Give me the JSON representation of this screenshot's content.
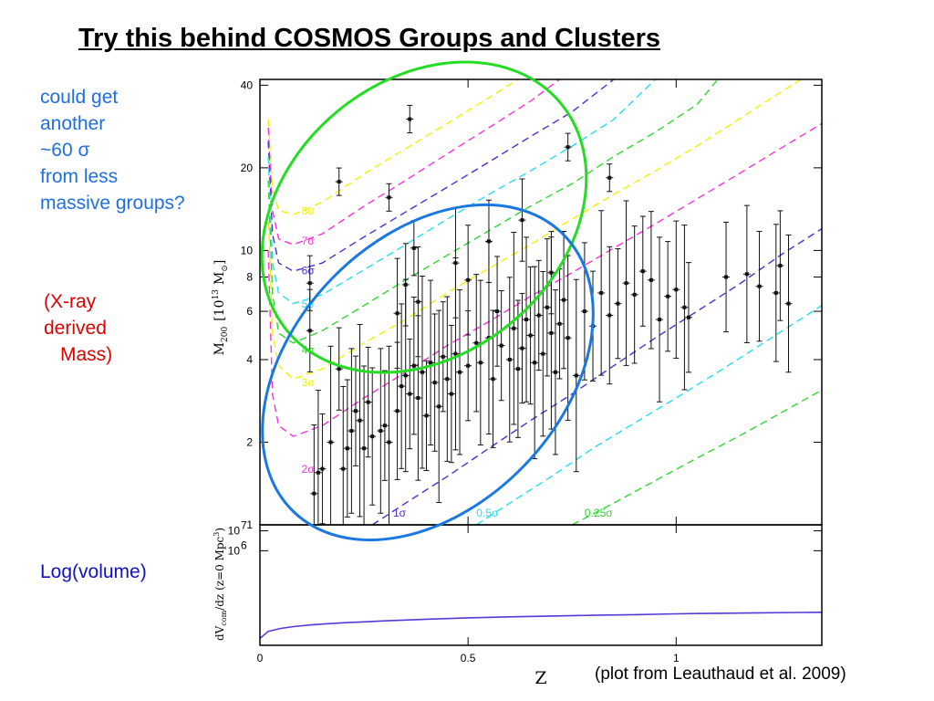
{
  "slide": {
    "title": "Try this behind COSMOS Groups and Clusters",
    "note_groups": [
      "could get",
      "another",
      "~60 σ",
      "from less",
      "massive groups?"
    ],
    "note_mass": [
      "(X-ray",
      "derived",
      "Mass)"
    ],
    "note_volume": "Log(volume)",
    "credit": "(plot from Leauthaud et al. 2009)"
  },
  "colors": {
    "yellow": "#f2f200",
    "magenta": "#ff30e0",
    "indigo": "#4a2fd8",
    "cyan": "#22e0f4",
    "green": "#30d830",
    "green_ellipse": "#22dd22",
    "blue_ellipse": "#1a78e0",
    "volume_curve": "#5a38d8"
  },
  "chart_data": [
    {
      "type": "scatter",
      "title": "",
      "xlabel": "",
      "ylabel": "M200 [10^13 M☉]",
      "ylabel_parts": {
        "main": "M",
        "sub": "200",
        "bracket_open": "[10",
        "exp": "13",
        "unit": "M",
        "unit_sub": "⊙",
        "bracket_close": "]"
      },
      "xlim": [
        0,
        1.35
      ],
      "ylim": [
        1,
        42
      ],
      "yscale": "log",
      "yticks": [
        1,
        2,
        4,
        6,
        8,
        10,
        20,
        40
      ],
      "ytick_labels": [
        "1",
        "2",
        "4",
        "6",
        "8",
        "10",
        "20",
        "40"
      ],
      "grid": false,
      "sigma_contours": [
        {
          "label": "8σ",
          "color": "yellow",
          "label_z": 0.1,
          "label_m": 13.5,
          "points": [
            [
              0.02,
              30
            ],
            [
              0.03,
              17
            ],
            [
              0.045,
              14
            ],
            [
              0.08,
              13.5
            ],
            [
              0.15,
              15
            ],
            [
              0.25,
              19
            ],
            [
              0.35,
              23.5
            ],
            [
              0.45,
              29
            ],
            [
              0.55,
              36
            ],
            [
              0.62,
              42
            ]
          ]
        },
        {
          "label": "7σ",
          "color": "magenta",
          "label_z": 0.1,
          "label_m": 10.5,
          "points": [
            [
              0.02,
              28
            ],
            [
              0.03,
              14
            ],
            [
              0.045,
              11
            ],
            [
              0.08,
              10.5
            ],
            [
              0.15,
              11.5
            ],
            [
              0.25,
              14.5
            ],
            [
              0.35,
              18
            ],
            [
              0.45,
              22.5
            ],
            [
              0.55,
              28
            ],
            [
              0.65,
              35
            ],
            [
              0.72,
              42
            ]
          ]
        },
        {
          "label": "6σ",
          "color": "indigo",
          "label_z": 0.1,
          "label_m": 8.2,
          "points": [
            [
              0.02,
              25
            ],
            [
              0.03,
              11.5
            ],
            [
              0.045,
              9
            ],
            [
              0.08,
              8.4
            ],
            [
              0.15,
              9
            ],
            [
              0.25,
              11.2
            ],
            [
              0.35,
              13.8
            ],
            [
              0.45,
              17
            ],
            [
              0.55,
              21
            ],
            [
              0.65,
              26
            ],
            [
              0.75,
              32
            ],
            [
              0.85,
              42
            ]
          ]
        },
        {
          "label": "5σ",
          "color": "cyan",
          "label_z": 0.1,
          "label_m": 6.2,
          "points": [
            [
              0.02,
              22
            ],
            [
              0.03,
              9
            ],
            [
              0.045,
              7
            ],
            [
              0.08,
              6.4
            ],
            [
              0.15,
              6.9
            ],
            [
              0.25,
              8.5
            ],
            [
              0.35,
              10.5
            ],
            [
              0.45,
              13
            ],
            [
              0.55,
              16
            ],
            [
              0.65,
              19.5
            ],
            [
              0.75,
              24
            ],
            [
              0.85,
              30
            ],
            [
              0.95,
              42
            ]
          ]
        },
        {
          "label": "4σ",
          "color": "green",
          "label_z": 0.1,
          "label_m": 4.2,
          "points": [
            [
              0.02,
              18
            ],
            [
              0.03,
              7
            ],
            [
              0.045,
              5
            ],
            [
              0.08,
              4.6
            ],
            [
              0.15,
              5.1
            ],
            [
              0.25,
              6.3
            ],
            [
              0.35,
              7.8
            ],
            [
              0.45,
              9.6
            ],
            [
              0.55,
              11.8
            ],
            [
              0.65,
              14.5
            ],
            [
              0.75,
              17.5
            ],
            [
              0.85,
              22
            ],
            [
              0.95,
              27
            ],
            [
              1.05,
              34
            ],
            [
              1.1,
              42
            ]
          ]
        },
        {
          "label": "3σ",
          "color": "yellow",
          "label_z": 0.1,
          "label_m": 3.2,
          "points": [
            [
              0.02,
              14
            ],
            [
              0.03,
              5
            ],
            [
              0.045,
              3.8
            ],
            [
              0.08,
              3.4
            ],
            [
              0.15,
              3.7
            ],
            [
              0.25,
              4.6
            ],
            [
              0.35,
              5.6
            ],
            [
              0.45,
              7
            ],
            [
              0.55,
              8.6
            ],
            [
              0.65,
              10.5
            ],
            [
              0.75,
              13
            ],
            [
              0.85,
              16
            ],
            [
              0.95,
              19.5
            ],
            [
              1.05,
              24
            ],
            [
              1.15,
              30
            ],
            [
              1.23,
              36
            ],
            [
              1.3,
              42
            ]
          ]
        },
        {
          "label": "2σ",
          "color": "magenta",
          "label_z": 0.1,
          "label_m": 1.55,
          "points": [
            [
              0.02,
              10
            ],
            [
              0.03,
              3
            ],
            [
              0.045,
              2.3
            ],
            [
              0.08,
              2.1
            ],
            [
              0.15,
              2.3
            ],
            [
              0.25,
              2.9
            ],
            [
              0.35,
              3.6
            ],
            [
              0.45,
              4.5
            ],
            [
              0.55,
              5.5
            ],
            [
              0.65,
              6.8
            ],
            [
              0.75,
              8.3
            ],
            [
              0.85,
              10.2
            ],
            [
              0.95,
              12.5
            ],
            [
              1.05,
              15.4
            ],
            [
              1.15,
              19
            ],
            [
              1.25,
              23.5
            ],
            [
              1.35,
              29
            ]
          ]
        },
        {
          "label": "1σ",
          "color": "indigo",
          "label_z": 0.32,
          "label_m": 1.07,
          "points": [
            [
              0.27,
              1
            ],
            [
              0.35,
              1.2
            ],
            [
              0.45,
              1.5
            ],
            [
              0.55,
              1.9
            ],
            [
              0.65,
              2.4
            ],
            [
              0.75,
              3
            ],
            [
              0.85,
              3.8
            ],
            [
              0.95,
              4.8
            ],
            [
              1.05,
              6
            ],
            [
              1.15,
              7.5
            ],
            [
              1.25,
              9.6
            ],
            [
              1.35,
              12
            ]
          ]
        },
        {
          "label": "0.5σ",
          "color": "cyan",
          "label_z": 0.52,
          "label_m": 1.07,
          "points": [
            [
              0.52,
              1
            ],
            [
              0.6,
              1.2
            ],
            [
              0.7,
              1.5
            ],
            [
              0.8,
              1.9
            ],
            [
              0.9,
              2.35
            ],
            [
              1.0,
              2.9
            ],
            [
              1.1,
              3.6
            ],
            [
              1.2,
              4.5
            ],
            [
              1.35,
              6.3
            ]
          ]
        },
        {
          "label": "0.25σ",
          "color": "green",
          "label_z": 0.78,
          "label_m": 1.07,
          "points": [
            [
              0.75,
              1
            ],
            [
              0.85,
              1.2
            ],
            [
              0.95,
              1.45
            ],
            [
              1.05,
              1.75
            ],
            [
              1.15,
              2.1
            ],
            [
              1.25,
              2.55
            ],
            [
              1.35,
              3.1
            ]
          ]
        }
      ],
      "points": [
        [
          0.13,
          1.3
        ],
        [
          0.14,
          1.55
        ],
        [
          0.15,
          1.6
        ],
        [
          0.17,
          2.0
        ],
        [
          0.2,
          1.6
        ],
        [
          0.21,
          1.9
        ],
        [
          0.22,
          2.2
        ],
        [
          0.23,
          2.6
        ],
        [
          0.24,
          2.4
        ],
        [
          0.25,
          1.9
        ],
        [
          0.27,
          2.1
        ],
        [
          0.29,
          2.2
        ],
        [
          0.3,
          2.3
        ],
        [
          0.31,
          2.0
        ],
        [
          0.33,
          2.6
        ],
        [
          0.34,
          3.2
        ],
        [
          0.35,
          3.5
        ],
        [
          0.36,
          3.0
        ],
        [
          0.37,
          3.8
        ],
        [
          0.38,
          2.9
        ],
        [
          0.39,
          3.6
        ],
        [
          0.4,
          2.5
        ],
        [
          0.41,
          3.9
        ],
        [
          0.42,
          3.3
        ],
        [
          0.43,
          2.7
        ],
        [
          0.44,
          4.1
        ],
        [
          0.45,
          3.4
        ],
        [
          0.46,
          3.0
        ],
        [
          0.47,
          4.2
        ],
        [
          0.48,
          3.6
        ],
        [
          0.5,
          3.8
        ],
        [
          0.52,
          4.6
        ],
        [
          0.53,
          3.9
        ],
        [
          0.55,
          4.8
        ],
        [
          0.56,
          3.4
        ],
        [
          0.58,
          4.5
        ],
        [
          0.6,
          4.0
        ],
        [
          0.61,
          5.2
        ],
        [
          0.62,
          3.7
        ],
        [
          0.63,
          4.4
        ],
        [
          0.64,
          5.6
        ],
        [
          0.65,
          4.9
        ],
        [
          0.66,
          3.9
        ],
        [
          0.67,
          5.8
        ],
        [
          0.68,
          4.2
        ],
        [
          0.69,
          6.2
        ],
        [
          0.7,
          5.0
        ],
        [
          0.71,
          3.6
        ],
        [
          0.72,
          5.4
        ],
        [
          0.73,
          6.6
        ],
        [
          0.74,
          4.8
        ],
        [
          0.76,
          3.5
        ],
        [
          0.78,
          6.0
        ],
        [
          0.8,
          5.3
        ],
        [
          0.82,
          7.0
        ],
        [
          0.84,
          5.8
        ],
        [
          0.86,
          6.4
        ],
        [
          0.88,
          7.6
        ],
        [
          0.9,
          6.9
        ],
        [
          0.92,
          8.4
        ],
        [
          0.94,
          7.8
        ],
        [
          0.96,
          5.6
        ],
        [
          0.98,
          6.8
        ],
        [
          1.0,
          7.2
        ],
        [
          1.02,
          6.2
        ],
        [
          1.03,
          5.7
        ],
        [
          1.12,
          8.0
        ],
        [
          1.17,
          8.2
        ],
        [
          1.2,
          7.4
        ],
        [
          1.24,
          7.0
        ],
        [
          1.25,
          8.8
        ],
        [
          1.27,
          6.4
        ],
        [
          0.12,
          7.6
        ],
        [
          0.12,
          5.1
        ],
        [
          0.19,
          3.7
        ],
        [
          0.26,
          2.8
        ],
        [
          0.33,
          5.9
        ],
        [
          0.35,
          7.5
        ],
        [
          0.37,
          10.2
        ],
        [
          0.38,
          6.5
        ],
        [
          0.47,
          9.0
        ],
        [
          0.5,
          7.8
        ],
        [
          0.57,
          6.0
        ],
        [
          0.63,
          12.9
        ],
        [
          0.7,
          8.3
        ],
        [
          0.19,
          17.8
        ],
        [
          0.31,
          15.6
        ],
        [
          0.36,
          30.1
        ],
        [
          0.74,
          23.8
        ],
        [
          0.84,
          18.4
        ],
        [
          0.55,
          10.8
        ]
      ],
      "y_error_half": [
        0.25,
        0.3,
        0.2,
        0.35,
        0.3,
        0.25,
        0.3,
        0.2,
        0.35,
        0.3,
        0.25,
        0.3,
        0.2,
        0.35,
        0.25,
        0.3,
        0.35,
        0.2,
        0.25,
        0.3,
        0.35,
        0.2,
        0.3,
        0.25,
        0.35,
        0.2,
        0.3,
        0.25,
        0.35,
        0.3,
        0.2,
        0.25,
        0.3,
        0.35,
        0.25,
        0.2,
        0.3,
        0.35,
        0.25,
        0.2,
        0.3,
        0.25,
        0.35,
        0.2,
        0.3,
        0.25,
        0.35,
        0.3,
        0.2,
        0.25,
        0.3,
        0.35,
        0.25,
        0.2,
        0.3,
        0.25,
        0.2,
        0.3,
        0.25,
        0.2,
        0.25,
        0.3,
        0.2,
        0.25,
        0.3,
        0.2,
        0.2,
        0.25,
        0.2,
        0.25,
        0.2,
        0.25,
        0.1,
        0.15,
        0.15,
        0.2,
        0.2,
        0.15,
        0.1,
        0.2,
        0.2,
        0.2,
        0.2,
        0.15,
        0.15,
        0.05,
        0.05,
        0.05,
        0.05,
        0.05,
        0.15
      ]
    },
    {
      "type": "line",
      "title": "",
      "xlabel": "Z",
      "ylabel": "dVcom/dz (z=0 Mpc³)",
      "ylabel_parts": {
        "lead": "dV",
        "sub": "com",
        "tail": "/dz (z=0 Mpc",
        "exp": "3",
        "close": ")"
      },
      "xlim": [
        0,
        1.35
      ],
      "ylim": [
        1.25,
        7.3
      ],
      "yscale": "log",
      "xticks": [
        0,
        0.5,
        1
      ],
      "xtick_labels": [
        "0",
        "0.5",
        "1"
      ],
      "yticks": [
        6,
        7
      ],
      "ytick_labels": [
        [
          "10",
          "6"
        ],
        [
          "10",
          "7"
        ]
      ],
      "grid": false,
      "series": [
        {
          "x": [
            0.0,
            0.02,
            0.05,
            0.08,
            0.12,
            0.16,
            0.2,
            0.25,
            0.3,
            0.35,
            0.4,
            0.5,
            0.6,
            0.7,
            0.8,
            0.9,
            1.0,
            1.1,
            1.2,
            1.3,
            1.35
          ],
          "y": [
            1.6,
            1.95,
            2.1,
            2.19,
            2.27,
            2.33,
            2.38,
            2.43,
            2.48,
            2.52,
            2.56,
            2.63,
            2.68,
            2.72,
            2.76,
            2.79,
            2.83,
            2.86,
            2.88,
            2.9,
            2.91
          ]
        }
      ]
    }
  ]
}
